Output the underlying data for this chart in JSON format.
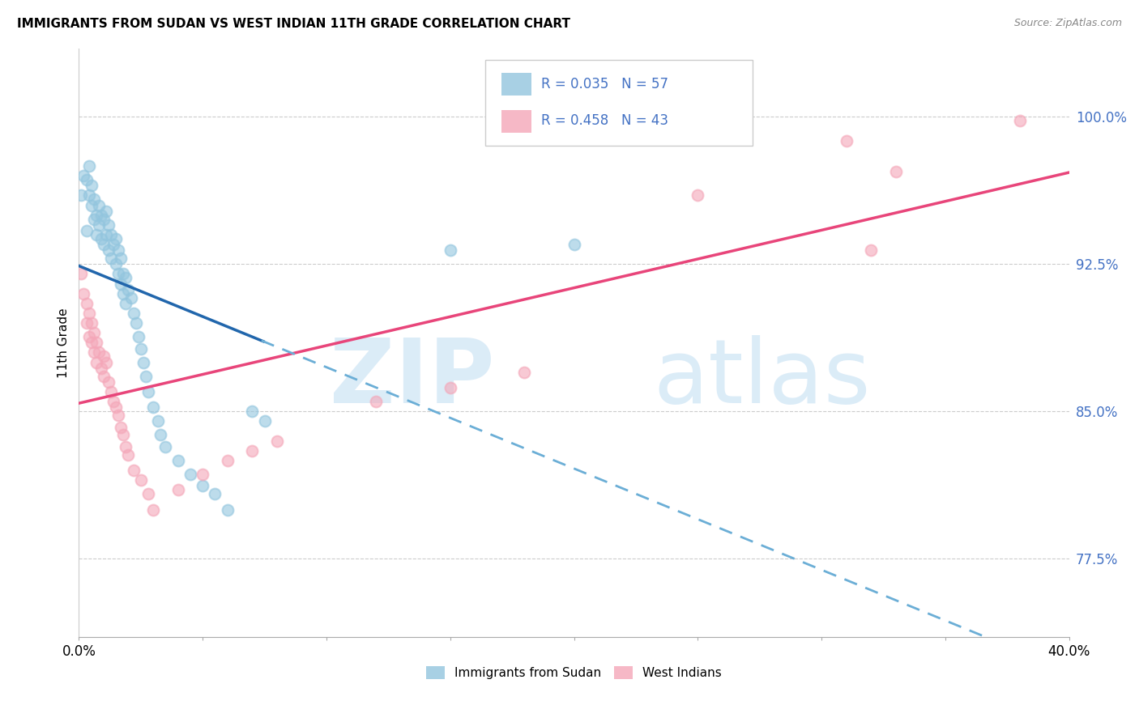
{
  "title": "IMMIGRANTS FROM SUDAN VS WEST INDIAN 11TH GRADE CORRELATION CHART",
  "source": "Source: ZipAtlas.com",
  "ylabel": "11th Grade",
  "yticks": [
    0.775,
    0.85,
    0.925,
    1.0
  ],
  "ytick_labels": [
    "77.5%",
    "85.0%",
    "92.5%",
    "100.0%"
  ],
  "xmin": 0.0,
  "xmax": 0.4,
  "ymin": 0.735,
  "ymax": 1.035,
  "sudan_R": 0.035,
  "sudan_N": 57,
  "westindian_R": 0.458,
  "westindian_N": 43,
  "sudan_color": "#92c5de",
  "westindian_color": "#f4a6b8",
  "sudan_line_solid_color": "#2166ac",
  "sudan_line_dash_color": "#6baed6",
  "westindian_line_color": "#e8457a",
  "legend_label_1": "Immigrants from Sudan",
  "legend_label_2": "West Indians",
  "sudan_x": [
    0.001,
    0.002,
    0.003,
    0.003,
    0.004,
    0.004,
    0.005,
    0.005,
    0.006,
    0.006,
    0.007,
    0.007,
    0.008,
    0.008,
    0.009,
    0.009,
    0.01,
    0.01,
    0.011,
    0.011,
    0.012,
    0.012,
    0.013,
    0.013,
    0.014,
    0.015,
    0.015,
    0.016,
    0.016,
    0.017,
    0.017,
    0.018,
    0.018,
    0.019,
    0.019,
    0.02,
    0.021,
    0.022,
    0.023,
    0.024,
    0.025,
    0.026,
    0.027,
    0.028,
    0.03,
    0.032,
    0.033,
    0.035,
    0.04,
    0.045,
    0.05,
    0.055,
    0.06,
    0.07,
    0.075,
    0.15,
    0.2
  ],
  "sudan_y": [
    0.96,
    0.97,
    0.968,
    0.942,
    0.96,
    0.975,
    0.955,
    0.965,
    0.958,
    0.948,
    0.95,
    0.94,
    0.955,
    0.945,
    0.95,
    0.938,
    0.948,
    0.935,
    0.952,
    0.94,
    0.945,
    0.932,
    0.94,
    0.928,
    0.935,
    0.938,
    0.925,
    0.932,
    0.92,
    0.928,
    0.915,
    0.92,
    0.91,
    0.918,
    0.905,
    0.912,
    0.908,
    0.9,
    0.895,
    0.888,
    0.882,
    0.875,
    0.868,
    0.86,
    0.852,
    0.845,
    0.838,
    0.832,
    0.825,
    0.818,
    0.812,
    0.808,
    0.8,
    0.85,
    0.845,
    0.932,
    0.935
  ],
  "westindian_x": [
    0.001,
    0.002,
    0.003,
    0.003,
    0.004,
    0.004,
    0.005,
    0.005,
    0.006,
    0.006,
    0.007,
    0.007,
    0.008,
    0.009,
    0.01,
    0.01,
    0.011,
    0.012,
    0.013,
    0.014,
    0.015,
    0.016,
    0.017,
    0.018,
    0.019,
    0.02,
    0.022,
    0.025,
    0.028,
    0.03,
    0.04,
    0.05,
    0.06,
    0.07,
    0.08,
    0.12,
    0.15,
    0.18,
    0.25,
    0.31,
    0.32,
    0.33,
    0.38
  ],
  "westindian_y": [
    0.92,
    0.91,
    0.905,
    0.895,
    0.9,
    0.888,
    0.895,
    0.885,
    0.89,
    0.88,
    0.885,
    0.875,
    0.88,
    0.872,
    0.878,
    0.868,
    0.875,
    0.865,
    0.86,
    0.855,
    0.852,
    0.848,
    0.842,
    0.838,
    0.832,
    0.828,
    0.82,
    0.815,
    0.808,
    0.8,
    0.81,
    0.818,
    0.825,
    0.83,
    0.835,
    0.855,
    0.862,
    0.87,
    0.96,
    0.988,
    0.932,
    0.972,
    0.998
  ]
}
